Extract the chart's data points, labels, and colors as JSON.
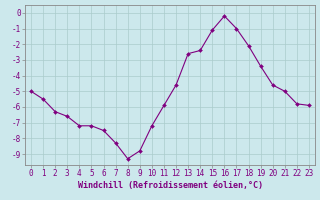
{
  "x": [
    0,
    1,
    2,
    3,
    4,
    5,
    6,
    7,
    8,
    9,
    10,
    11,
    12,
    13,
    14,
    15,
    16,
    17,
    18,
    19,
    20,
    21,
    22,
    23
  ],
  "y": [
    -5.0,
    -5.5,
    -6.3,
    -6.6,
    -7.2,
    -7.2,
    -7.5,
    -8.3,
    -9.3,
    -8.8,
    -7.2,
    -5.9,
    -4.6,
    -2.6,
    -2.4,
    -1.1,
    -0.2,
    -1.0,
    -2.1,
    -3.4,
    -4.6,
    -5.0,
    -5.8,
    -5.9
  ],
  "line_color": "#800080",
  "marker": "D",
  "marker_size": 2.0,
  "background_color": "#cce8ec",
  "grid_color": "#aacccc",
  "xlabel": "Windchill (Refroidissement éolien,°C)",
  "ylabel": "",
  "xlim": [
    -0.5,
    23.5
  ],
  "ylim": [
    -9.7,
    0.5
  ],
  "xticks": [
    0,
    1,
    2,
    3,
    4,
    5,
    6,
    7,
    8,
    9,
    10,
    11,
    12,
    13,
    14,
    15,
    16,
    17,
    18,
    19,
    20,
    21,
    22,
    23
  ],
  "yticks": [
    0,
    -1,
    -2,
    -3,
    -4,
    -5,
    -6,
    -7,
    -8,
    -9
  ],
  "tick_color": "#800080",
  "axis_color": "#888888",
  "label_fontsize": 6.0,
  "tick_fontsize": 5.5
}
